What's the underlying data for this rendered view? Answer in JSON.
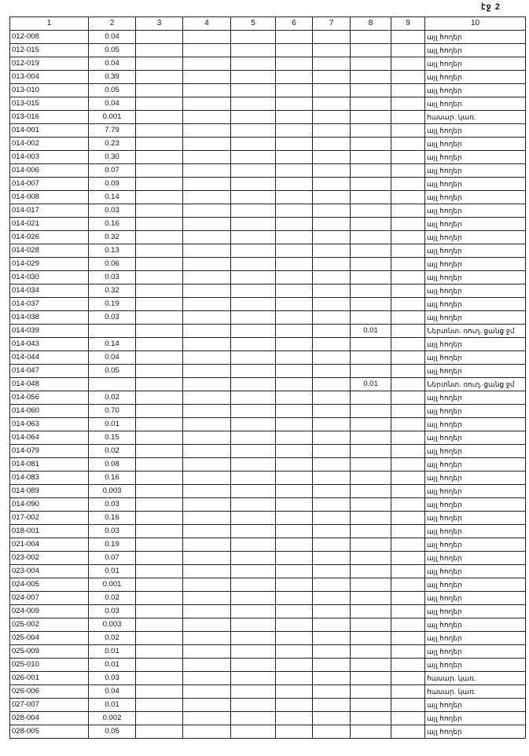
{
  "page_label": "էջ 2",
  "headers": [
    "1",
    "2",
    "3",
    "4",
    "5",
    "6",
    "7",
    "8",
    "9",
    "10"
  ],
  "rows": [
    [
      "012-008",
      "0.04",
      "",
      "",
      "",
      "",
      "",
      "",
      "",
      "այլ հողեր"
    ],
    [
      "012-015",
      "0.05",
      "",
      "",
      "",
      "",
      "",
      "",
      "",
      "այլ հողեր"
    ],
    [
      "012-019",
      "0.04",
      "",
      "",
      "",
      "",
      "",
      "",
      "",
      "այլ հողեր"
    ],
    [
      "013-004",
      "0.39",
      "",
      "",
      "",
      "",
      "",
      "",
      "",
      "այլ հողեր"
    ],
    [
      "013-010",
      "0.05",
      "",
      "",
      "",
      "",
      "",
      "",
      "",
      "այլ հողեր"
    ],
    [
      "013-015",
      "0.04",
      "",
      "",
      "",
      "",
      "",
      "",
      "",
      "այլ հողեր"
    ],
    [
      "013-016",
      "0.001",
      "",
      "",
      "",
      "",
      "",
      "",
      "",
      "հասար. կառ."
    ],
    [
      "014-001",
      "7.79",
      "",
      "",
      "",
      "",
      "",
      "",
      "",
      "այլ հողեր"
    ],
    [
      "014-002",
      "0.23",
      "",
      "",
      "",
      "",
      "",
      "",
      "",
      "այլ հողեր"
    ],
    [
      "014-003",
      "0.30",
      "",
      "",
      "",
      "",
      "",
      "",
      "",
      "այլ հողեր"
    ],
    [
      "014-006",
      "0.07",
      "",
      "",
      "",
      "",
      "",
      "",
      "",
      "այլ հողեր"
    ],
    [
      "014-007",
      "0.09",
      "",
      "",
      "",
      "",
      "",
      "",
      "",
      "այլ հողեր"
    ],
    [
      "014-008",
      "0.14",
      "",
      "",
      "",
      "",
      "",
      "",
      "",
      "այլ հողեր"
    ],
    [
      "014-017",
      "0.03",
      "",
      "",
      "",
      "",
      "",
      "",
      "",
      "այլ հողեր"
    ],
    [
      "014-021",
      "0.16",
      "",
      "",
      "",
      "",
      "",
      "",
      "",
      "այլ հողեր"
    ],
    [
      "014-026",
      "0.32",
      "",
      "",
      "",
      "",
      "",
      "",
      "",
      "այլ հողեր"
    ],
    [
      "014-028",
      "0.13",
      "",
      "",
      "",
      "",
      "",
      "",
      "",
      "այլ հողեր"
    ],
    [
      "014-029",
      "0.06",
      "",
      "",
      "",
      "",
      "",
      "",
      "",
      "այլ հողեր"
    ],
    [
      "014-030",
      "0.03",
      "",
      "",
      "",
      "",
      "",
      "",
      "",
      "այլ հողեր"
    ],
    [
      "014-034",
      "0.32",
      "",
      "",
      "",
      "",
      "",
      "",
      "",
      "այլ հողեր"
    ],
    [
      "014-037",
      "0.19",
      "",
      "",
      "",
      "",
      "",
      "",
      "",
      "այլ հողեր"
    ],
    [
      "014-038",
      "0.03",
      "",
      "",
      "",
      "",
      "",
      "",
      "",
      "այլ հողեր"
    ],
    [
      "014-039",
      "",
      "",
      "",
      "",
      "",
      "",
      "0.01",
      "",
      "Ներտնտ. ռուղ. ցանց ջմ"
    ],
    [
      "014-043",
      "0.14",
      "",
      "",
      "",
      "",
      "",
      "",
      "",
      "այլ հողեր"
    ],
    [
      "014-044",
      "0.04",
      "",
      "",
      "",
      "",
      "",
      "",
      "",
      "այլ հողեր"
    ],
    [
      "014-047",
      "0.05",
      "",
      "",
      "",
      "",
      "",
      "",
      "",
      "այլ հողեր"
    ],
    [
      "014-048",
      "",
      "",
      "",
      "",
      "",
      "",
      "0.01",
      "",
      "Ներտնտ. ռուղ. ցանց ջմ"
    ],
    [
      "014-056",
      "0.02",
      "",
      "",
      "",
      "",
      "",
      "",
      "",
      "այլ հողեր"
    ],
    [
      "014-060",
      "0.70",
      "",
      "",
      "",
      "",
      "",
      "",
      "",
      "այլ հողեր"
    ],
    [
      "014-063",
      "0.01",
      "",
      "",
      "",
      "",
      "",
      "",
      "",
      "այլ հողեր"
    ],
    [
      "014-064",
      "0.15",
      "",
      "",
      "",
      "",
      "",
      "",
      "",
      "այլ հողեր"
    ],
    [
      "014-079",
      "0.02",
      "",
      "",
      "",
      "",
      "",
      "",
      "",
      "այլ հողեր"
    ],
    [
      "014-081",
      "0.08",
      "",
      "",
      "",
      "",
      "",
      "",
      "",
      "այլ հողեր"
    ],
    [
      "014-083",
      "0.16",
      "",
      "",
      "",
      "",
      "",
      "",
      "",
      "այլ հողեր"
    ],
    [
      "014-089",
      "0.003",
      "",
      "",
      "",
      "",
      "",
      "",
      "",
      "այլ հողեր"
    ],
    [
      "014-090",
      "0.03",
      "",
      "",
      "",
      "",
      "",
      "",
      "",
      "այլ հողեր"
    ],
    [
      "017-002",
      "0.16",
      "",
      "",
      "",
      "",
      "",
      "",
      "",
      "այլ հողեր"
    ],
    [
      "018-001",
      "0.03",
      "",
      "",
      "",
      "",
      "",
      "",
      "",
      "այլ հողեր"
    ],
    [
      "021-004",
      "0.19",
      "",
      "",
      "",
      "",
      "",
      "",
      "",
      "այլ հողեր"
    ],
    [
      "023-002",
      "0.07",
      "",
      "",
      "",
      "",
      "",
      "",
      "",
      "այլ հողեր"
    ],
    [
      "023-004",
      "0.01",
      "",
      "",
      "",
      "",
      "",
      "",
      "",
      "այլ հողեր"
    ],
    [
      "024-005",
      "0.001",
      "",
      "",
      "",
      "",
      "",
      "",
      "",
      "այլ հողեր"
    ],
    [
      "024-007",
      "0.02",
      "",
      "",
      "",
      "",
      "",
      "",
      "",
      "այլ հողեր"
    ],
    [
      "024-009",
      "0.03",
      "",
      "",
      "",
      "",
      "",
      "",
      "",
      "այլ հողեր"
    ],
    [
      "025-002",
      "0.003",
      "",
      "",
      "",
      "",
      "",
      "",
      "",
      "այլ հողեր"
    ],
    [
      "025-004",
      "0.02",
      "",
      "",
      "",
      "",
      "",
      "",
      "",
      "այլ հողեր"
    ],
    [
      "025-009",
      "0.01",
      "",
      "",
      "",
      "",
      "",
      "",
      "",
      "այլ հողեր"
    ],
    [
      "025-010",
      "0.01",
      "",
      "",
      "",
      "",
      "",
      "",
      "",
      "այլ հողեր"
    ],
    [
      "026-001",
      "0.03",
      "",
      "",
      "",
      "",
      "",
      "",
      "",
      "հասար. կառ."
    ],
    [
      "026-006",
      "0.04",
      "",
      "",
      "",
      "",
      "",
      "",
      "",
      "հասար. կառ."
    ],
    [
      "027-007",
      "0.01",
      "",
      "",
      "",
      "",
      "",
      "",
      "",
      "այլ հողեր"
    ],
    [
      "028-004",
      "0.002",
      "",
      "",
      "",
      "",
      "",
      "",
      "",
      "այլ հողեր"
    ],
    [
      "028-005",
      "0.05",
      "",
      "",
      "",
      "",
      "",
      "",
      "",
      "այլ հողեր"
    ]
  ]
}
